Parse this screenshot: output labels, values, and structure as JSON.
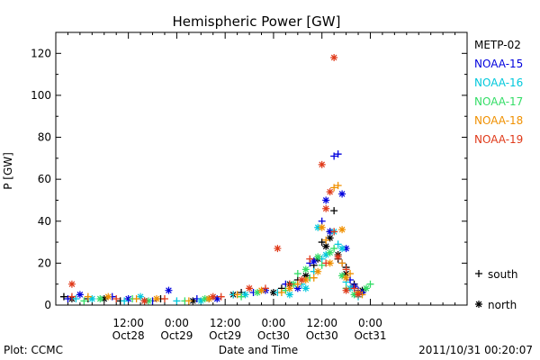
{
  "chart_data": {
    "type": "scatter",
    "title": "Hemispheric Power [GW]",
    "xlabel": "Date and Time",
    "ylabel": "P [GW]",
    "ylim": [
      0,
      130
    ],
    "xlim_hours": [
      0,
      102
    ],
    "y_ticks": [
      0,
      20,
      40,
      60,
      80,
      100,
      120
    ],
    "x_ticks": [
      {
        "hour": 18,
        "line1": "12:00",
        "line2": "Oct28"
      },
      {
        "hour": 30,
        "line1": "0:00",
        "line2": "Oct29"
      },
      {
        "hour": 42,
        "line1": "12:00",
        "line2": "Oct29"
      },
      {
        "hour": 54,
        "line1": "0:00",
        "line2": "Oct30"
      },
      {
        "hour": 66,
        "line1": "12:00",
        "line2": "Oct30"
      },
      {
        "hour": 78,
        "line1": "0:00",
        "line2": "Oct31"
      }
    ],
    "grid": false,
    "legend_position": "right",
    "marker_legend": {
      "south": "south",
      "north": "north"
    },
    "series": [
      {
        "name": "METP-02",
        "color": "#000000",
        "south": [
          [
            2,
            4
          ],
          [
            8,
            3
          ],
          [
            16,
            2
          ],
          [
            26,
            3
          ],
          [
            38,
            3
          ],
          [
            46,
            6
          ],
          [
            56,
            8
          ],
          [
            60,
            12
          ],
          [
            64,
            19
          ],
          [
            66,
            30
          ],
          [
            68,
            35
          ],
          [
            69,
            45
          ],
          [
            70,
            22
          ],
          [
            72,
            18
          ],
          [
            74,
            10
          ],
          [
            76,
            6
          ]
        ],
        "north": [
          [
            4,
            3
          ],
          [
            12,
            3
          ],
          [
            22,
            2
          ],
          [
            34,
            2
          ],
          [
            44,
            5
          ],
          [
            54,
            6
          ],
          [
            58,
            10
          ],
          [
            62,
            14
          ],
          [
            65,
            22
          ],
          [
            67,
            28
          ],
          [
            68,
            32
          ],
          [
            70,
            24
          ],
          [
            72,
            15
          ],
          [
            74,
            9
          ],
          [
            76,
            7
          ]
        ]
      },
      {
        "name": "NOAA-15",
        "color": "#0000dd",
        "south": [
          [
            3,
            3
          ],
          [
            14,
            4
          ],
          [
            24,
            2
          ],
          [
            35,
            3
          ],
          [
            49,
            6
          ],
          [
            57,
            10
          ],
          [
            63,
            20
          ],
          [
            66,
            40
          ],
          [
            69,
            71
          ],
          [
            70,
            72
          ],
          [
            71,
            20
          ],
          [
            73,
            12
          ],
          [
            75,
            7
          ]
        ],
        "north": [
          [
            6,
            5
          ],
          [
            18,
            3
          ],
          [
            28,
            7
          ],
          [
            40,
            3
          ],
          [
            52,
            7
          ],
          [
            60,
            8
          ],
          [
            64,
            21
          ],
          [
            67,
            50
          ],
          [
            68,
            35
          ],
          [
            71,
            53
          ],
          [
            72,
            27
          ],
          [
            74,
            9
          ],
          [
            76,
            6
          ]
        ]
      },
      {
        "name": "NOAA-16",
        "color": "#00c8dc",
        "south": [
          [
            5,
            3
          ],
          [
            17,
            2
          ],
          [
            30,
            2
          ],
          [
            44,
            5
          ],
          [
            55,
            6
          ],
          [
            61,
            10
          ],
          [
            64,
            16
          ],
          [
            66,
            22
          ],
          [
            70,
            29
          ],
          [
            72,
            11
          ],
          [
            75,
            4
          ]
        ],
        "north": [
          [
            9,
            3
          ],
          [
            21,
            4
          ],
          [
            36,
            2
          ],
          [
            47,
            5
          ],
          [
            58,
            5
          ],
          [
            62,
            8
          ],
          [
            65,
            37
          ],
          [
            67,
            24
          ],
          [
            69,
            35
          ],
          [
            71,
            27
          ],
          [
            73,
            8
          ]
        ]
      },
      {
        "name": "NOAA-17",
        "color": "#33dd66",
        "south": [
          [
            7,
            2
          ],
          [
            19,
            3
          ],
          [
            32,
            2
          ],
          [
            46,
            4
          ],
          [
            57,
            7
          ],
          [
            60,
            15
          ],
          [
            63,
            13
          ],
          [
            66,
            19
          ],
          [
            69,
            27
          ],
          [
            72,
            8
          ],
          [
            78,
            10
          ]
        ],
        "north": [
          [
            11,
            3
          ],
          [
            23,
            2
          ],
          [
            37,
            3
          ],
          [
            50,
            6
          ],
          [
            59,
            10
          ],
          [
            62,
            17
          ],
          [
            65,
            23
          ],
          [
            68,
            25
          ],
          [
            71,
            14
          ],
          [
            74,
            5
          ],
          [
            77,
            8
          ]
        ]
      },
      {
        "name": "NOAA-18",
        "color": "#f09000",
        "south": [
          [
            8,
            4
          ],
          [
            20,
            3
          ],
          [
            33,
            2
          ],
          [
            45,
            5
          ],
          [
            56,
            6
          ],
          [
            60,
            10
          ],
          [
            64,
            13
          ],
          [
            67,
            31
          ],
          [
            69,
            56
          ],
          [
            70,
            57
          ],
          [
            71,
            20
          ],
          [
            73,
            15
          ],
          [
            76,
            5
          ]
        ],
        "north": [
          [
            13,
            4
          ],
          [
            25,
            3
          ],
          [
            38,
            3
          ],
          [
            51,
            7
          ],
          [
            58,
            8
          ],
          [
            62,
            12
          ],
          [
            65,
            16
          ],
          [
            66,
            37
          ],
          [
            68,
            20
          ],
          [
            71,
            36
          ],
          [
            72,
            13
          ],
          [
            75,
            6
          ]
        ]
      },
      {
        "name": "NOAA-19",
        "color": "#e03a1a",
        "south": [
          [
            4,
            4
          ],
          [
            15,
            3
          ],
          [
            27,
            3
          ],
          [
            41,
            4
          ],
          [
            52,
            8
          ],
          [
            58,
            10
          ],
          [
            63,
            22
          ],
          [
            67,
            20
          ],
          [
            69,
            35
          ],
          [
            72,
            17
          ],
          [
            74,
            8
          ]
        ],
        "north": [
          [
            4,
            10
          ],
          [
            22,
            2
          ],
          [
            39,
            4
          ],
          [
            48,
            8
          ],
          [
            55,
            27
          ],
          [
            61,
            12
          ],
          [
            66,
            67
          ],
          [
            67,
            46
          ],
          [
            68,
            54
          ],
          [
            69,
            118
          ],
          [
            70,
            23
          ],
          [
            72,
            7
          ],
          [
            75,
            5
          ]
        ]
      }
    ]
  },
  "footer": {
    "left": "Plot: CCMC",
    "right": "2011/10/31 00:20:07"
  }
}
